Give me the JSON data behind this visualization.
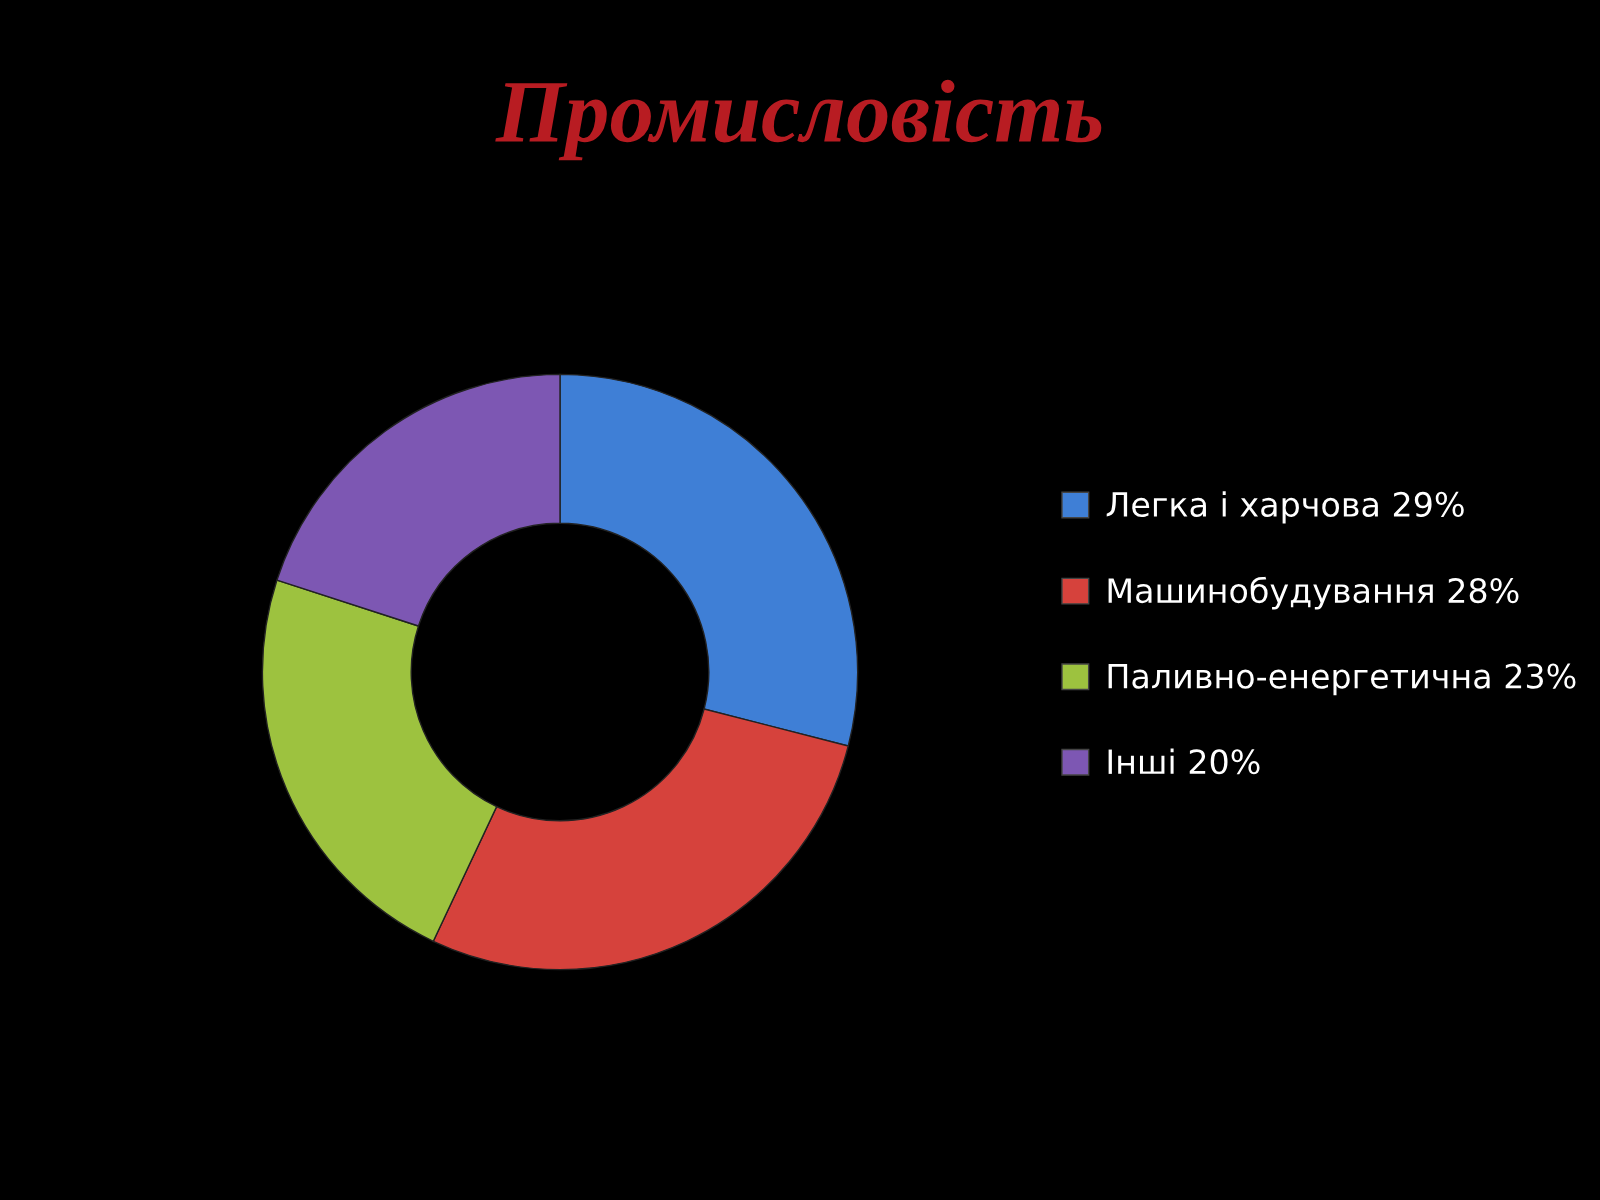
{
  "chart_data": {
    "type": "donut",
    "title": "Промисловість",
    "categories": [
      "Легка і харчова",
      "Машинобудування",
      "Паливно-енергетична",
      "Інші"
    ],
    "values": [
      29,
      28,
      23,
      20
    ],
    "value_labels": [
      "29%",
      "28%",
      "23%",
      "20%"
    ],
    "colors": [
      "#3f7fd6",
      "#d6423c",
      "#9dc23f",
      "#7d57b3"
    ],
    "legend": "right"
  }
}
